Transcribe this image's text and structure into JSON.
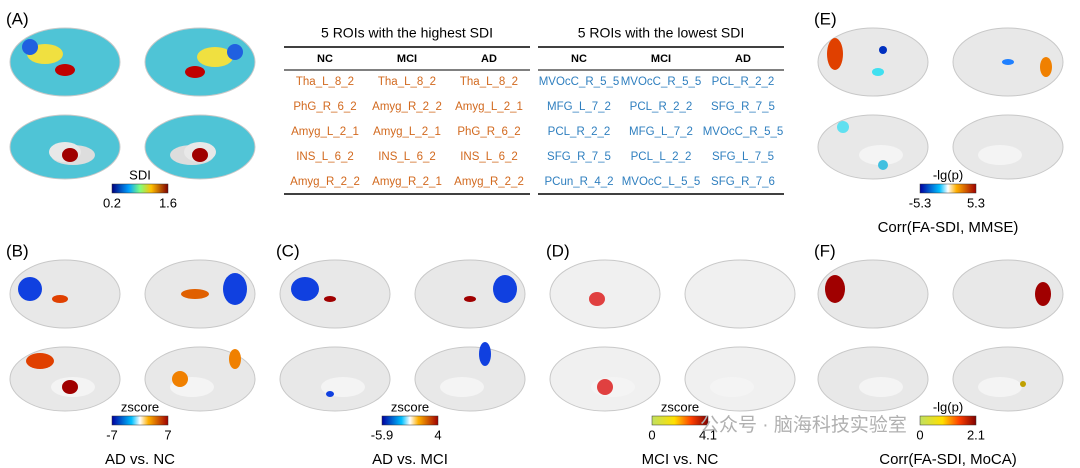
{
  "panels": [
    {
      "label": "(A)",
      "colorbar": {
        "title": "SDI",
        "min": "0.2",
        "max": "1.6"
      }
    },
    {
      "label": "(E)",
      "colorbar": {
        "title": "-lg(p)",
        "min": "-5.3",
        "max": "5.3"
      },
      "caption": "Corr(FA-SDI, MMSE)"
    },
    {
      "label": "(B)",
      "colorbar": {
        "title": "zscore",
        "min": "-7",
        "max": "7"
      },
      "caption": "AD vs. NC"
    },
    {
      "label": "(C)",
      "colorbar": {
        "title": "zscore",
        "min": "-5.9",
        "max": "4"
      },
      "caption": "AD vs. MCI"
    },
    {
      "label": "(D)",
      "colorbar": {
        "title": "zscore",
        "min": "0",
        "max": "4.1"
      },
      "caption": "MCI vs. NC"
    },
    {
      "label": "(F)",
      "colorbar": {
        "title": "-lg(p)",
        "min": "0",
        "max": "2.1"
      },
      "caption": "Corr(FA-SDI, MoCA)"
    }
  ],
  "tables": [
    {
      "title": "5 ROIs with the highest SDI",
      "headers": [
        "NC",
        "MCI",
        "AD"
      ],
      "rows": [
        [
          "Tha_L_8_2",
          "Tha_L_8_2",
          "Tha_L_8_2"
        ],
        [
          "PhG_R_6_2",
          "Amyg_R_2_2",
          "Amyg_L_2_1"
        ],
        [
          "Amyg_L_2_1",
          "Amyg_L_2_1",
          "PhG_R_6_2"
        ],
        [
          "INS_L_6_2",
          "INS_L_6_2",
          "INS_L_6_2"
        ],
        [
          "Amyg_R_2_2",
          "Amyg_R_2_1",
          "Amyg_R_2_2"
        ]
      ]
    },
    {
      "title": "5 ROIs with the lowest SDI",
      "headers": [
        "NC",
        "MCI",
        "AD"
      ],
      "rows": [
        [
          "MVOcC_R_5_5",
          "MVOcC_R_5_5",
          "PCL_R_2_2"
        ],
        [
          "MFG_L_7_2",
          "PCL_R_2_2",
          "SFG_R_7_5"
        ],
        [
          "PCL_R_2_2",
          "MFG_L_7_2",
          "MVOcC_R_5_5"
        ],
        [
          "SFG_R_7_5",
          "PCL_L_2_2",
          "SFG_L_7_5"
        ],
        [
          "PCun_R_4_2",
          "MVOcC_L_5_5",
          "SFG_R_7_6"
        ]
      ]
    }
  ],
  "watermark": "公众号 · 脑海科技实验室"
}
